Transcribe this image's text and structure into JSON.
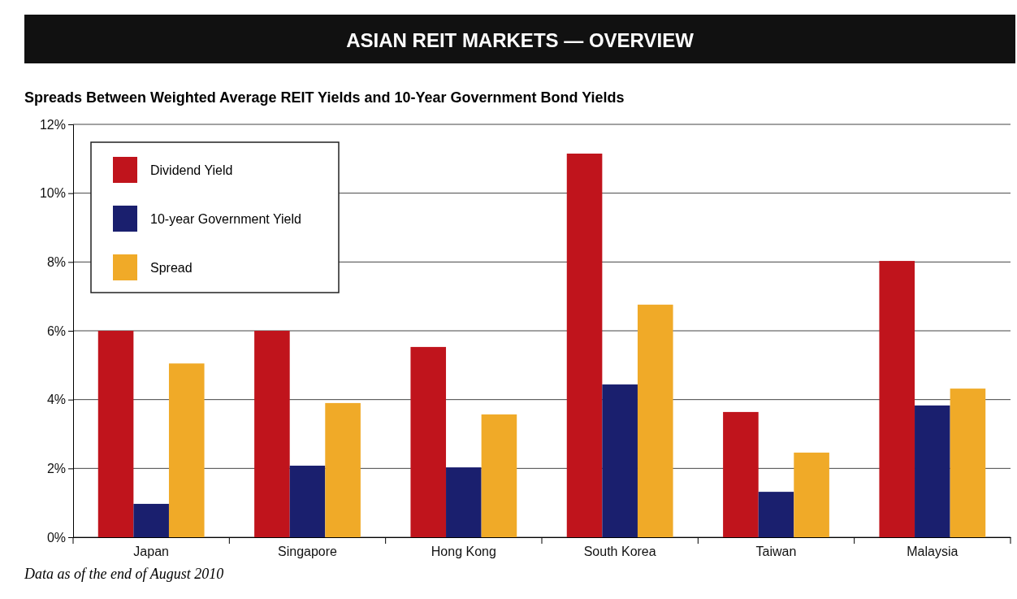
{
  "chart_data": {
    "type": "bar",
    "title": "ASIAN REIT MARKETS — OVERVIEW",
    "subtitle": "Spreads Between Weighted Average REIT Yields and 10-Year Government Bond Yields",
    "categories": [
      "Japan",
      "Singapore",
      "Hong Kong",
      "South Korea",
      "Taiwan",
      "Malaysia"
    ],
    "series": [
      {
        "name": "Dividend Yield",
        "color": "#c0141c",
        "values": [
          6.0,
          6.0,
          5.53,
          11.15,
          3.64,
          8.03
        ]
      },
      {
        "name": "10-year Government Yield",
        "color": "#1a1f6e",
        "values": [
          0.97,
          2.08,
          2.03,
          4.44,
          1.32,
          3.83
        ]
      },
      {
        "name": "Spread",
        "color": "#f0aa28",
        "values": [
          5.05,
          3.9,
          3.57,
          6.76,
          2.46,
          4.32
        ]
      }
    ],
    "ylim": [
      0,
      12
    ],
    "yticks": [
      {
        "value": 0,
        "label": "0%"
      },
      {
        "value": 2,
        "label": "2%"
      },
      {
        "value": 4,
        "label": "4%"
      },
      {
        "value": 6,
        "label": "6%"
      },
      {
        "value": 8,
        "label": "8%"
      },
      {
        "value": 10,
        "label": "10%"
      },
      {
        "value": 12,
        "label": "12%"
      }
    ],
    "grid": "y",
    "legend": "top left",
    "annotations": [
      "Data as of the end of August 2010"
    ]
  }
}
